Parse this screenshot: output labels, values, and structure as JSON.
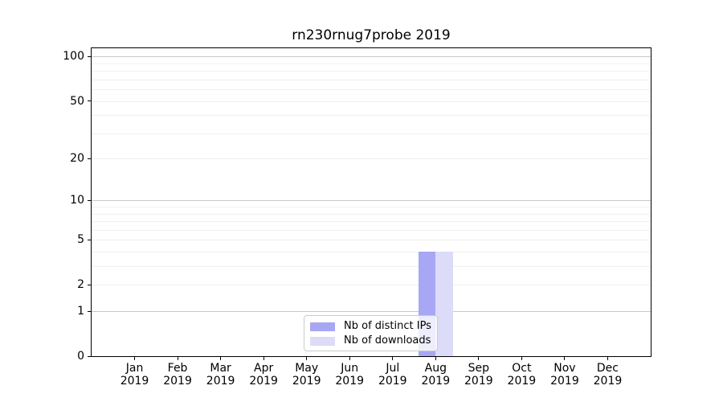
{
  "title": "rn230rnug7probe 2019",
  "chart_data": {
    "type": "bar",
    "title": "rn230rnug7probe 2019",
    "x_categories": [
      "Jan",
      "Feb",
      "Mar",
      "Apr",
      "May",
      "Jun",
      "Jul",
      "Aug",
      "Sep",
      "Oct",
      "Nov",
      "Dec"
    ],
    "x_year": "2019",
    "series": [
      {
        "name": "Nb of distinct IPs",
        "color": "#a7a7f3",
        "values": [
          0,
          0,
          0,
          0,
          0,
          0,
          0,
          4,
          0,
          0,
          0,
          0
        ]
      },
      {
        "name": "Nb of downloads",
        "color": "#dcdcf8",
        "values": [
          0,
          0,
          0,
          0,
          0,
          0,
          0,
          4,
          0,
          0,
          0,
          0
        ]
      }
    ],
    "y_scale": "log10(1+y)",
    "y_ticks": [
      0,
      1,
      2,
      5,
      10,
      20,
      50,
      100
    ],
    "y_gridlines_major": [
      1,
      10,
      100
    ],
    "y_gridlines_minor": [
      2,
      3,
      4,
      5,
      6,
      7,
      8,
      9,
      20,
      30,
      40,
      50,
      60,
      70,
      80,
      90
    ],
    "ylim": [
      0,
      114
    ],
    "xlabel": "",
    "ylabel": "",
    "grid": "on",
    "legend_position": "lower center",
    "style": {
      "spine_color": "#000000",
      "major_grid_color": "#c9c9c9",
      "minor_grid_color": "#f0f0f0",
      "legend_border_color": "#cccccc"
    }
  }
}
